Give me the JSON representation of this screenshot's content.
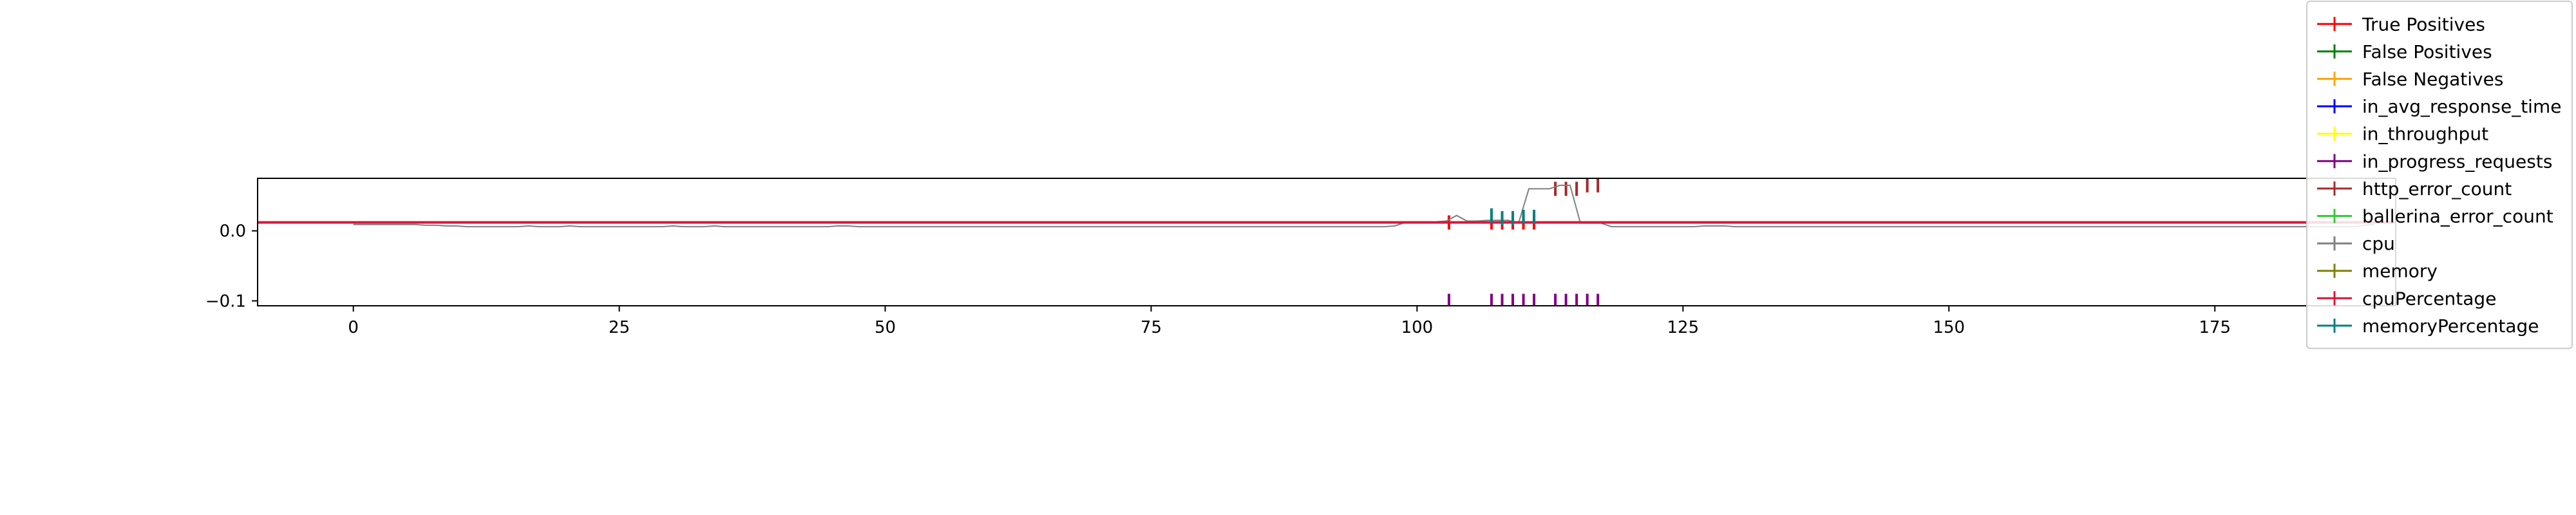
{
  "chart_data": {
    "type": "line",
    "title": "",
    "xlabel": "",
    "ylabel": "",
    "xlim": [
      -9,
      192
    ],
    "ylim": [
      -0.107,
      0.075
    ],
    "x_ticks": [
      0,
      25,
      50,
      75,
      100,
      125,
      150,
      175
    ],
    "y_ticks": [
      0.0,
      -0.1
    ],
    "x_tick_labels": [
      "0",
      "25",
      "50",
      "75",
      "100",
      "125",
      "150",
      "175"
    ],
    "y_tick_labels": [
      "0.0",
      "−0.1"
    ],
    "grid": false,
    "legend_position": "top-right",
    "series": [
      {
        "name": "True Positives",
        "color": "#ff0000",
        "kind": "markers",
        "points": [
          [
            103,
            0.012
          ],
          [
            107,
            0.012
          ],
          [
            108,
            0.012
          ],
          [
            109,
            0.012
          ],
          [
            110,
            0.012
          ],
          [
            111,
            0.012
          ]
        ]
      },
      {
        "name": "False Positives",
        "color": "#008000",
        "kind": "markers",
        "points": []
      },
      {
        "name": "False Negatives",
        "color": "#ffa500",
        "kind": "markers",
        "points": []
      },
      {
        "name": "in_avg_response_time",
        "color": "#0000ff",
        "kind": "markers",
        "points": []
      },
      {
        "name": "in_throughput",
        "color": "#ffff00",
        "kind": "markers",
        "points": []
      },
      {
        "name": "in_progress_requests",
        "color": "#800080",
        "kind": "markers",
        "points": [
          [
            103,
            -0.1
          ],
          [
            107,
            -0.1
          ],
          [
            108,
            -0.1
          ],
          [
            109,
            -0.1
          ],
          [
            110,
            -0.1
          ],
          [
            111,
            -0.1
          ],
          [
            113,
            -0.1
          ],
          [
            114,
            -0.1
          ],
          [
            115,
            -0.1
          ],
          [
            116,
            -0.1
          ],
          [
            117,
            -0.1
          ]
        ]
      },
      {
        "name": "http_error_count",
        "color": "#a52a2a",
        "kind": "markers",
        "points": [
          [
            113,
            0.06
          ],
          [
            114,
            0.06
          ],
          [
            115,
            0.06
          ],
          [
            116,
            0.065
          ],
          [
            117,
            0.065
          ]
        ]
      },
      {
        "name": "ballerina_error_count",
        "color": "#32cd32",
        "kind": "markers",
        "points": []
      },
      {
        "name": "cpu",
        "color": "#808080",
        "kind": "line",
        "x_start": 0,
        "x_end": 190,
        "y": [
          0.009,
          0.009,
          0.009,
          0.009,
          0.009,
          0.009,
          0.009,
          0.008,
          0.008,
          0.007,
          0.007,
          0.006,
          0.006,
          0.006,
          0.006,
          0.006,
          0.006,
          0.007,
          0.006,
          0.006,
          0.006,
          0.007,
          0.006,
          0.006,
          0.006,
          0.006,
          0.006,
          0.006,
          0.006,
          0.006,
          0.006,
          0.007,
          0.006,
          0.006,
          0.006,
          0.007,
          0.006,
          0.006,
          0.006,
          0.006,
          0.006,
          0.006,
          0.006,
          0.006,
          0.006,
          0.006,
          0.006,
          0.007,
          0.007,
          0.006,
          0.006,
          0.006,
          0.006,
          0.006,
          0.006,
          0.006,
          0.006,
          0.006,
          0.006,
          0.006,
          0.006,
          0.006,
          0.006,
          0.006,
          0.006,
          0.006,
          0.006,
          0.006,
          0.006,
          0.006,
          0.006,
          0.006,
          0.006,
          0.006,
          0.006,
          0.006,
          0.006,
          0.006,
          0.006,
          0.006,
          0.006,
          0.006,
          0.006,
          0.006,
          0.006,
          0.006,
          0.006,
          0.006,
          0.006,
          0.006,
          0.006,
          0.006,
          0.006,
          0.006,
          0.006,
          0.006,
          0.006,
          0.006,
          0.006,
          0.006,
          0.006,
          0.007,
          0.012,
          0.013,
          0.013,
          0.013,
          0.014,
          0.022,
          0.014,
          0.014,
          0.015,
          0.015,
          0.015,
          0.011,
          0.06,
          0.06,
          0.06,
          0.065,
          0.065,
          0.011,
          0.011,
          0.011,
          0.006,
          0.006,
          0.006,
          0.006,
          0.006,
          0.006,
          0.006,
          0.006,
          0.006,
          0.007,
          0.007,
          0.007,
          0.006,
          0.006,
          0.006,
          0.006,
          0.006,
          0.006,
          0.006,
          0.006,
          0.006,
          0.006,
          0.006,
          0.006,
          0.006,
          0.006,
          0.006,
          0.006,
          0.006,
          0.006,
          0.006,
          0.006,
          0.006,
          0.006,
          0.006,
          0.006,
          0.006,
          0.006,
          0.006,
          0.006,
          0.006,
          0.006,
          0.006,
          0.006,
          0.006,
          0.006,
          0.006,
          0.006,
          0.006,
          0.006,
          0.006,
          0.006,
          0.006,
          0.006,
          0.006,
          0.006,
          0.006,
          0.006,
          0.006,
          0.006,
          0.006,
          0.006,
          0.006,
          0.006,
          0.006,
          0.006,
          0.006,
          0.006,
          0.006,
          0.006,
          0.006,
          0.006,
          0.006,
          0.008,
          0.009
        ]
      },
      {
        "name": "memory",
        "color": "#808000",
        "kind": "markers",
        "points": []
      },
      {
        "name": "cpuPercentage",
        "color": "#dc143c",
        "kind": "line",
        "x_start": -9,
        "x_end": 192,
        "y": [
          0.012,
          0.012
        ]
      },
      {
        "name": "memoryPercentage",
        "color": "#008080",
        "kind": "markers",
        "points": [
          [
            107,
            0.022
          ],
          [
            108,
            0.018
          ],
          [
            109,
            0.018
          ],
          [
            110,
            0.02
          ],
          [
            111,
            0.02
          ]
        ]
      }
    ]
  }
}
